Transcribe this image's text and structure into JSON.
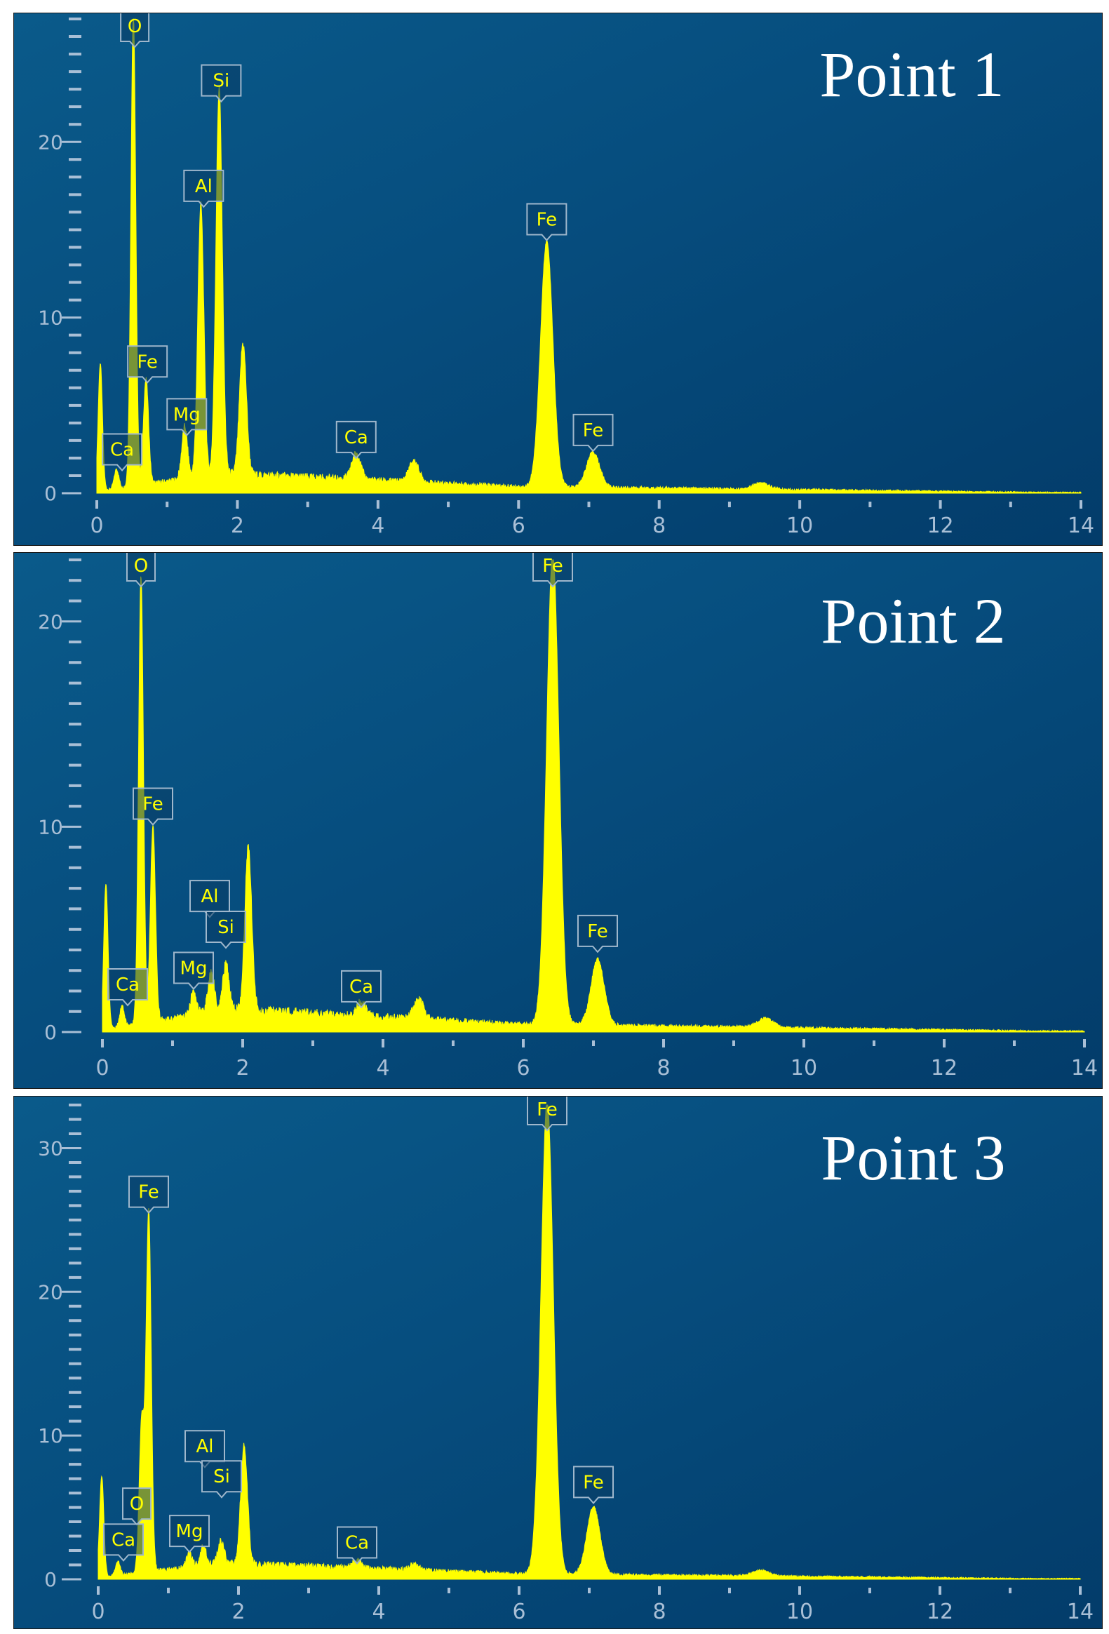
{
  "colors": {
    "background_light": "#0a5a8a",
    "background_dark": "#033c6a",
    "spectrum": "#ffff00",
    "axis": "#a9bfd6",
    "label_border": "#9fb7cc",
    "title": "#ffffff"
  },
  "chart_data": [
    {
      "type": "area",
      "title": "Point 1",
      "xlim": [
        0,
        14
      ],
      "ylim": [
        0,
        27
      ],
      "x_ticks": [
        0,
        2,
        4,
        6,
        8,
        10,
        12,
        14
      ],
      "y_ticks": [
        0,
        10,
        20
      ],
      "peaks": [
        {
          "x": 0.05,
          "y": 7.2
        },
        {
          "x": 0.28,
          "y": 1.1
        },
        {
          "x": 0.52,
          "y": 27
        },
        {
          "x": 0.7,
          "y": 6.0
        },
        {
          "x": 1.25,
          "y": 3.0
        },
        {
          "x": 1.48,
          "y": 15.5
        },
        {
          "x": 1.74,
          "y": 22
        },
        {
          "x": 2.08,
          "y": 7.5
        },
        {
          "x": 3.69,
          "y": 1.5
        },
        {
          "x": 4.51,
          "y": 1.2
        },
        {
          "x": 6.4,
          "y": 14
        },
        {
          "x": 7.06,
          "y": 2.0
        },
        {
          "x": 9.45,
          "y": 0.35
        }
      ],
      "labels": [
        {
          "text": "O",
          "x": 0.54,
          "y": 27
        },
        {
          "text": "Si",
          "x": 1.77,
          "y": 22.3
        },
        {
          "text": "Al",
          "x": 1.52,
          "y": 16.3
        },
        {
          "text": "Fe",
          "x": 6.4,
          "y": 14.4
        },
        {
          "text": "Fe",
          "x": 0.72,
          "y": 6.3
        },
        {
          "text": "Mg",
          "x": 1.28,
          "y": 3.3
        },
        {
          "text": "Ca",
          "x": 0.36,
          "y": 1.3
        },
        {
          "text": "Ca",
          "x": 3.69,
          "y": 2.0
        },
        {
          "text": "Fe",
          "x": 7.06,
          "y": 2.4
        }
      ]
    },
    {
      "type": "area",
      "title": "Point 2",
      "xlim": [
        0,
        14
      ],
      "ylim": [
        0,
        23
      ],
      "x_ticks": [
        0,
        2,
        4,
        6,
        8,
        10,
        12,
        14
      ],
      "y_ticks": [
        0,
        10,
        20
      ],
      "peaks": [
        {
          "x": 0.05,
          "y": 7.0
        },
        {
          "x": 0.28,
          "y": 1.0
        },
        {
          "x": 0.55,
          "y": 21.8
        },
        {
          "x": 0.72,
          "y": 9.5
        },
        {
          "x": 1.3,
          "y": 1.2
        },
        {
          "x": 1.55,
          "y": 2.0
        },
        {
          "x": 1.76,
          "y": 2.2
        },
        {
          "x": 2.08,
          "y": 8.0
        },
        {
          "x": 3.69,
          "y": 0.7
        },
        {
          "x": 4.51,
          "y": 1.0
        },
        {
          "x": 6.42,
          "y": 23
        },
        {
          "x": 7.06,
          "y": 3.2
        },
        {
          "x": 9.45,
          "y": 0.45
        }
      ],
      "labels": [
        {
          "text": "O",
          "x": 0.55,
          "y": 22.0
        },
        {
          "text": "Fe",
          "x": 6.42,
          "y": 22.0
        },
        {
          "text": "Fe",
          "x": 0.72,
          "y": 10.1
        },
        {
          "text": "Al",
          "x": 1.53,
          "y": 5.6
        },
        {
          "text": "Si",
          "x": 1.76,
          "y": 4.1
        },
        {
          "text": "Fe",
          "x": 7.06,
          "y": 3.9
        },
        {
          "text": "Mg",
          "x": 1.3,
          "y": 2.1
        },
        {
          "text": "Ca",
          "x": 0.36,
          "y": 1.3
        },
        {
          "text": "Ca",
          "x": 3.69,
          "y": 1.2
        }
      ]
    },
    {
      "type": "area",
      "title": "Point 3",
      "xlim": [
        0,
        14
      ],
      "ylim": [
        0,
        33
      ],
      "x_ticks": [
        0,
        2,
        4,
        6,
        8,
        10,
        12,
        14
      ],
      "y_ticks": [
        0,
        10,
        20,
        30
      ],
      "peaks": [
        {
          "x": 0.05,
          "y": 7.0
        },
        {
          "x": 0.28,
          "y": 1.0
        },
        {
          "x": 0.62,
          "y": 10.5
        },
        {
          "x": 0.72,
          "y": 25
        },
        {
          "x": 1.3,
          "y": 1.0
        },
        {
          "x": 1.5,
          "y": 1.4
        },
        {
          "x": 1.75,
          "y": 1.6
        },
        {
          "x": 2.08,
          "y": 8.2
        },
        {
          "x": 3.69,
          "y": 0.5
        },
        {
          "x": 4.51,
          "y": 0.4
        },
        {
          "x": 6.4,
          "y": 33
        },
        {
          "x": 7.06,
          "y": 4.7
        },
        {
          "x": 9.45,
          "y": 0.4
        }
      ],
      "labels": [
        {
          "text": "Fe",
          "x": 6.4,
          "y": 32.0
        },
        {
          "text": "Fe",
          "x": 0.72,
          "y": 25.5
        },
        {
          "text": "Al",
          "x": 1.52,
          "y": 7.8
        },
        {
          "text": "Si",
          "x": 1.76,
          "y": 5.7
        },
        {
          "text": "Fe",
          "x": 7.06,
          "y": 5.3
        },
        {
          "text": "O",
          "x": 0.55,
          "y": 3.8
        },
        {
          "text": "Mg",
          "x": 1.3,
          "y": 1.9
        },
        {
          "text": "Ca",
          "x": 0.36,
          "y": 1.3
        },
        {
          "text": "Ca",
          "x": 3.69,
          "y": 1.1
        }
      ]
    }
  ]
}
